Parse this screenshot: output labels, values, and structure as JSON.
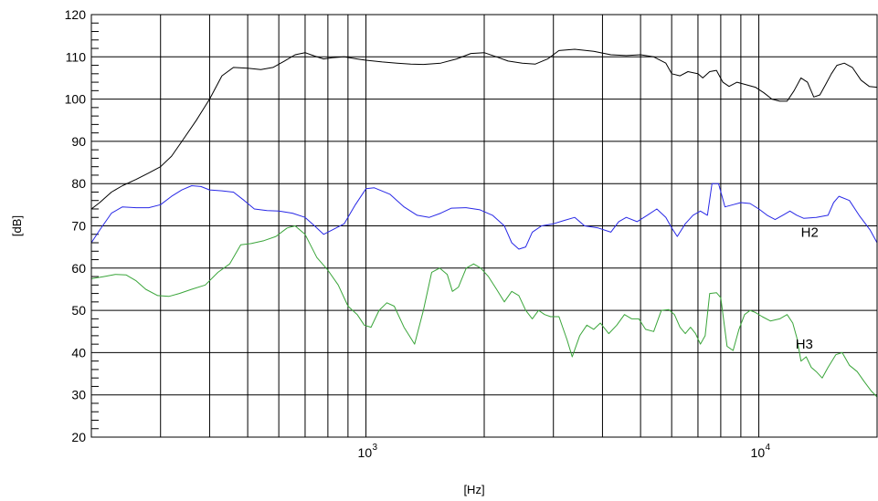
{
  "chart_data": {
    "type": "line",
    "xlabel": "[Hz]",
    "ylabel": "[dB]",
    "xscale": "log",
    "xlim": [
      200,
      20000
    ],
    "ylim": [
      20,
      120
    ],
    "yticks": [
      20,
      30,
      40,
      50,
      60,
      70,
      80,
      90,
      100,
      110,
      120
    ],
    "xtick_labels": [
      {
        "value": 1000,
        "base": "10",
        "exp": "3"
      },
      {
        "value": 10000,
        "base": "10",
        "exp": "4"
      }
    ],
    "grid": true,
    "series": [
      {
        "name": "",
        "color": "#000000",
        "points": [
          [
            200,
            74
          ],
          [
            210,
            75.5
          ],
          [
            225,
            78
          ],
          [
            240,
            79.5
          ],
          [
            260,
            81
          ],
          [
            280,
            82.5
          ],
          [
            300,
            84
          ],
          [
            320,
            86.5
          ],
          [
            340,
            90
          ],
          [
            370,
            95
          ],
          [
            400,
            100
          ],
          [
            430,
            105.5
          ],
          [
            460,
            107.5
          ],
          [
            500,
            107.3
          ],
          [
            540,
            107
          ],
          [
            580,
            107.5
          ],
          [
            620,
            109
          ],
          [
            660,
            110.5
          ],
          [
            700,
            111
          ],
          [
            740,
            110.2
          ],
          [
            780,
            109.5
          ],
          [
            820,
            109.8
          ],
          [
            880,
            110
          ],
          [
            950,
            109.5
          ],
          [
            1000,
            109.2
          ],
          [
            1100,
            108.8
          ],
          [
            1200,
            108.5
          ],
          [
            1300,
            108.3
          ],
          [
            1400,
            108.2
          ],
          [
            1550,
            108.5
          ],
          [
            1700,
            109.5
          ],
          [
            1850,
            110.8
          ],
          [
            2000,
            111
          ],
          [
            2150,
            110
          ],
          [
            2300,
            109
          ],
          [
            2500,
            108.5
          ],
          [
            2700,
            108.3
          ],
          [
            2900,
            109.5
          ],
          [
            3100,
            111.5
          ],
          [
            3400,
            111.8
          ],
          [
            3800,
            111.3
          ],
          [
            4200,
            110.5
          ],
          [
            4600,
            110.3
          ],
          [
            5000,
            110.5
          ],
          [
            5400,
            110
          ],
          [
            5800,
            108.5
          ],
          [
            6000,
            106
          ],
          [
            6300,
            105.5
          ],
          [
            6600,
            106.5
          ],
          [
            7000,
            106
          ],
          [
            7200,
            105
          ],
          [
            7500,
            106.5
          ],
          [
            7800,
            106.8
          ],
          [
            8100,
            104
          ],
          [
            8400,
            103
          ],
          [
            8800,
            104
          ],
          [
            9200,
            103.5
          ],
          [
            9800,
            102.8
          ],
          [
            10300,
            101.5
          ],
          [
            10800,
            100
          ],
          [
            11300,
            99.5
          ],
          [
            11800,
            99.5
          ],
          [
            12300,
            102
          ],
          [
            12800,
            105
          ],
          [
            13300,
            104
          ],
          [
            13800,
            100.5
          ],
          [
            14300,
            101
          ],
          [
            14800,
            103.5
          ],
          [
            15300,
            106
          ],
          [
            15800,
            108
          ],
          [
            16500,
            108.5
          ],
          [
            17300,
            107.5
          ],
          [
            18200,
            104.5
          ],
          [
            19100,
            103
          ],
          [
            20000,
            102.8
          ]
        ]
      },
      {
        "name": "H2",
        "color": "#2828e6",
        "points": [
          [
            200,
            66
          ],
          [
            210,
            69
          ],
          [
            225,
            73
          ],
          [
            240,
            74.5
          ],
          [
            260,
            74.3
          ],
          [
            280,
            74.3
          ],
          [
            300,
            75
          ],
          [
            320,
            77
          ],
          [
            340,
            78.5
          ],
          [
            360,
            79.5
          ],
          [
            380,
            79.3
          ],
          [
            400,
            78.5
          ],
          [
            430,
            78.3
          ],
          [
            460,
            78
          ],
          [
            490,
            76
          ],
          [
            520,
            74
          ],
          [
            560,
            73.6
          ],
          [
            600,
            73.5
          ],
          [
            650,
            73
          ],
          [
            700,
            72
          ],
          [
            740,
            70
          ],
          [
            780,
            68
          ],
          [
            820,
            69
          ],
          [
            880,
            70.5
          ],
          [
            940,
            75
          ],
          [
            1000,
            78.8
          ],
          [
            1050,
            79
          ],
          [
            1150,
            77.5
          ],
          [
            1250,
            74.5
          ],
          [
            1350,
            72.5
          ],
          [
            1450,
            72
          ],
          [
            1550,
            73
          ],
          [
            1650,
            74.2
          ],
          [
            1800,
            74.3
          ],
          [
            1950,
            73.8
          ],
          [
            2100,
            72.5
          ],
          [
            2250,
            70
          ],
          [
            2350,
            66
          ],
          [
            2450,
            64.5
          ],
          [
            2550,
            65
          ],
          [
            2650,
            68.5
          ],
          [
            2800,
            70
          ],
          [
            3000,
            70.5
          ],
          [
            3200,
            71.3
          ],
          [
            3400,
            72
          ],
          [
            3600,
            70
          ],
          [
            3900,
            69.5
          ],
          [
            4200,
            68.5
          ],
          [
            4400,
            71
          ],
          [
            4600,
            72
          ],
          [
            4900,
            71
          ],
          [
            5200,
            72.5
          ],
          [
            5500,
            74
          ],
          [
            5800,
            72
          ],
          [
            6000,
            69.5
          ],
          [
            6200,
            67.5
          ],
          [
            6500,
            70.5
          ],
          [
            6800,
            72.5
          ],
          [
            7100,
            73.5
          ],
          [
            7400,
            72.5
          ],
          [
            7600,
            80
          ],
          [
            7900,
            80
          ],
          [
            8200,
            74.5
          ],
          [
            8600,
            75
          ],
          [
            9000,
            75.5
          ],
          [
            9500,
            75.3
          ],
          [
            10000,
            74
          ],
          [
            10500,
            72.5
          ],
          [
            11000,
            71.5
          ],
          [
            11500,
            72.5
          ],
          [
            12000,
            73.5
          ],
          [
            12500,
            72.5
          ],
          [
            13000,
            71.8
          ],
          [
            14000,
            72
          ],
          [
            15000,
            72.5
          ],
          [
            15500,
            75.5
          ],
          [
            16000,
            77
          ],
          [
            17000,
            76
          ],
          [
            18000,
            72.5
          ],
          [
            19200,
            69
          ],
          [
            20000,
            66
          ]
        ]
      },
      {
        "name": "H3",
        "color": "#3aa53a",
        "points": [
          [
            200,
            57.5
          ],
          [
            215,
            58
          ],
          [
            230,
            58.5
          ],
          [
            245,
            58.4
          ],
          [
            260,
            57
          ],
          [
            275,
            55
          ],
          [
            295,
            53.5
          ],
          [
            315,
            53.3
          ],
          [
            335,
            54
          ],
          [
            360,
            55
          ],
          [
            390,
            56
          ],
          [
            420,
            59
          ],
          [
            450,
            61
          ],
          [
            480,
            65.5
          ],
          [
            510,
            65.8
          ],
          [
            550,
            66.5
          ],
          [
            590,
            67.5
          ],
          [
            630,
            69.5
          ],
          [
            660,
            70
          ],
          [
            700,
            68
          ],
          [
            750,
            62.5
          ],
          [
            800,
            59.5
          ],
          [
            850,
            56
          ],
          [
            900,
            51
          ],
          [
            950,
            49
          ],
          [
            990,
            46.5
          ],
          [
            1030,
            46
          ],
          [
            1080,
            50
          ],
          [
            1130,
            51.8
          ],
          [
            1180,
            51
          ],
          [
            1250,
            46
          ],
          [
            1330,
            42
          ],
          [
            1400,
            50
          ],
          [
            1470,
            59
          ],
          [
            1540,
            60
          ],
          [
            1610,
            58.5
          ],
          [
            1660,
            54.5
          ],
          [
            1720,
            55.5
          ],
          [
            1800,
            60
          ],
          [
            1880,
            61
          ],
          [
            1960,
            60
          ],
          [
            2050,
            58
          ],
          [
            2150,
            55
          ],
          [
            2250,
            52
          ],
          [
            2350,
            54.5
          ],
          [
            2450,
            53.5
          ],
          [
            2550,
            50
          ],
          [
            2650,
            48
          ],
          [
            2750,
            50
          ],
          [
            2850,
            49
          ],
          [
            2950,
            48.5
          ],
          [
            3100,
            48.5
          ],
          [
            3250,
            43
          ],
          [
            3350,
            39
          ],
          [
            3500,
            44
          ],
          [
            3650,
            46.5
          ],
          [
            3800,
            45.5
          ],
          [
            3950,
            47
          ],
          [
            4150,
            44.5
          ],
          [
            4350,
            46.5
          ],
          [
            4550,
            49
          ],
          [
            4750,
            48
          ],
          [
            4950,
            48
          ],
          [
            5150,
            45.5
          ],
          [
            5400,
            45
          ],
          [
            5650,
            50
          ],
          [
            5900,
            50.2
          ],
          [
            6100,
            49
          ],
          [
            6300,
            46
          ],
          [
            6500,
            44.5
          ],
          [
            6700,
            46
          ],
          [
            6900,
            44.5
          ],
          [
            7100,
            42
          ],
          [
            7300,
            44
          ],
          [
            7500,
            54
          ],
          [
            7800,
            54.2
          ],
          [
            8000,
            53
          ],
          [
            8300,
            41.5
          ],
          [
            8600,
            40.5
          ],
          [
            8900,
            45.5
          ],
          [
            9200,
            49
          ],
          [
            9500,
            50
          ],
          [
            9800,
            49.5
          ],
          [
            10200,
            48.5
          ],
          [
            10700,
            47.5
          ],
          [
            11300,
            48
          ],
          [
            11800,
            49
          ],
          [
            12200,
            47
          ],
          [
            12500,
            43.5
          ],
          [
            12800,
            38
          ],
          [
            13200,
            39
          ],
          [
            13600,
            36.5
          ],
          [
            14000,
            35.5
          ],
          [
            14500,
            34
          ],
          [
            15000,
            36.5
          ],
          [
            15700,
            39.5
          ],
          [
            16300,
            40
          ],
          [
            17000,
            37
          ],
          [
            17800,
            35.5
          ],
          [
            18600,
            33
          ],
          [
            19300,
            31
          ],
          [
            20000,
            29.5
          ]
        ]
      }
    ],
    "annotations": [
      {
        "text": "H2",
        "x": 12800,
        "y": 68.5
      },
      {
        "text": "H3",
        "x": 12400,
        "y": 42
      }
    ]
  }
}
